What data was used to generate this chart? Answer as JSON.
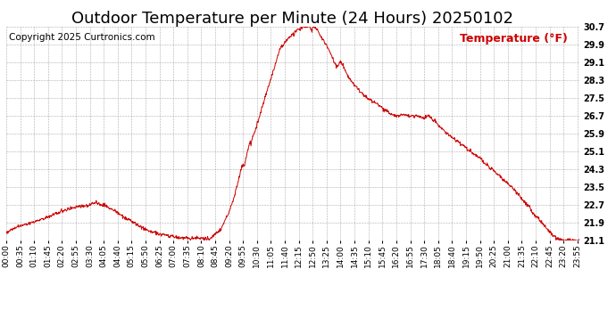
{
  "title": "Outdoor Temperature per Minute (24 Hours) 20250102",
  "copyright": "Copyright 2025 Curtronics.com",
  "legend_label": "Temperature (°F)",
  "line_color": "#cc0000",
  "legend_color": "#cc0000",
  "background_color": "#ffffff",
  "grid_color": "#999999",
  "yticks": [
    21.1,
    21.9,
    22.7,
    23.5,
    24.3,
    25.1,
    25.9,
    26.7,
    27.5,
    28.3,
    29.1,
    29.9,
    30.7
  ],
  "ylim": [
    21.1,
    30.7
  ],
  "title_fontsize": 13,
  "axis_fontsize": 6.5,
  "copyright_fontsize": 7.5,
  "legend_fontsize": 9
}
